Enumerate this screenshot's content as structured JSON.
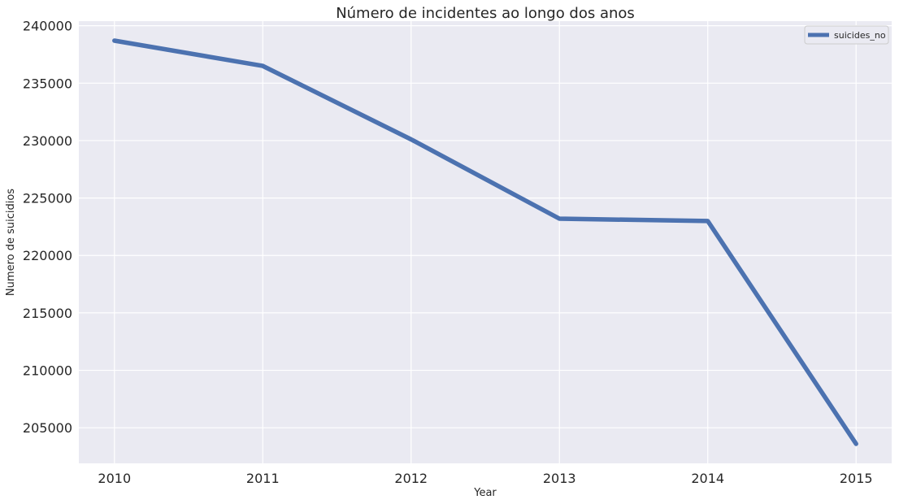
{
  "chart_data": {
    "type": "line",
    "title": "Número de incidentes ao longo dos anos",
    "xlabel": "Year",
    "ylabel": "Numero de suicidios",
    "x": [
      2010,
      2011,
      2012,
      2013,
      2014,
      2015
    ],
    "series": [
      {
        "name": "suicides_no",
        "values": [
          238700,
          236500,
          230100,
          223200,
          223000,
          203600
        ],
        "color": "#4c72b0"
      }
    ],
    "xlim": [
      2009.76,
      2015.24
    ],
    "ylim": [
      201900,
      240400
    ],
    "yticks": [
      205000,
      210000,
      215000,
      220000,
      225000,
      230000,
      235000,
      240000
    ],
    "xticks": [
      2010,
      2011,
      2012,
      2013,
      2014,
      2015
    ],
    "grid": true,
    "legend": "top-right",
    "background_color": "#eaeaf2",
    "grid_color": "#ffffff"
  }
}
